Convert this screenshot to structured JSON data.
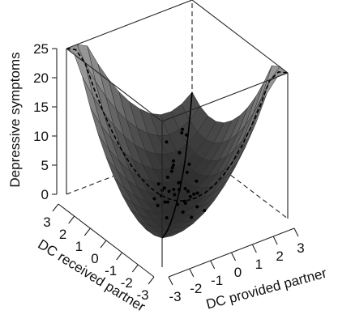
{
  "chart_data": {
    "type": "surface3d",
    "zlabel": "Depressive symptoms",
    "xlabel": "DC provided partner",
    "ylabel": "DC received partner",
    "x_ticks": [
      "-3",
      "-2",
      "-1",
      "0",
      "1",
      "2",
      "3"
    ],
    "y_ticks": [
      "-3",
      "-2",
      "-1",
      "0",
      "1",
      "2",
      "3"
    ],
    "z_ticks": [
      "0",
      "5",
      "10",
      "15",
      "20",
      "25"
    ],
    "xlim": [
      -3,
      3
    ],
    "ylim": [
      -3,
      3
    ],
    "zlim": [
      0,
      25
    ],
    "surface": {
      "description": "saddle-shaped quadratic response surface, gray shaded",
      "grid": [
        -3,
        -2.5,
        -2,
        -1.5,
        -1,
        -0.5,
        0,
        0.5,
        1,
        1.5,
        2,
        2.5,
        3
      ]
    },
    "lines": [
      {
        "name": "line of congruence",
        "style": "solid"
      },
      {
        "name": "line of incongruence",
        "style": "dashed"
      }
    ],
    "points": [
      [
        0.1,
        -0.2,
        13.5
      ],
      [
        0.3,
        0.1,
        12.0
      ],
      [
        -0.2,
        0.4,
        10.5
      ],
      [
        0.6,
        0.2,
        11.0
      ],
      [
        -0.4,
        -0.3,
        9.0
      ],
      [
        0.2,
        -0.5,
        8.0
      ],
      [
        0.5,
        0.5,
        7.5
      ],
      [
        -0.1,
        0.1,
        7.0
      ],
      [
        0.0,
        0.3,
        6.0
      ],
      [
        0.4,
        -0.1,
        5.5
      ],
      [
        -0.3,
        0.2,
        5.0
      ],
      [
        0.2,
        0.6,
        4.5
      ],
      [
        0.7,
        -0.3,
        4.0
      ],
      [
        -0.5,
        0.5,
        3.5
      ],
      [
        0.1,
        -0.7,
        3.0
      ],
      [
        0.3,
        0.3,
        3.0
      ],
      [
        -0.2,
        -0.1,
        2.5
      ],
      [
        0.6,
        0.6,
        2.0
      ],
      [
        -0.6,
        -0.2,
        2.0
      ],
      [
        0.4,
        0.4,
        1.5
      ],
      [
        0.0,
        0.8,
        1.5
      ],
      [
        0.8,
        0.0,
        1.0
      ],
      [
        -0.3,
        0.6,
        1.0
      ],
      [
        0.2,
        -0.2,
        1.0
      ],
      [
        0.5,
        -0.6,
        0.5
      ],
      [
        -0.7,
        0.3,
        0.5
      ],
      [
        0.3,
        0.9,
        0.3
      ],
      [
        0.9,
        0.5,
        0.3
      ],
      [
        -0.1,
        -0.5,
        0.2
      ],
      [
        0.1,
        0.1,
        0.0
      ],
      [
        0.6,
        1.0,
        0.0
      ],
      [
        1.0,
        0.8,
        0.0
      ],
      [
        -0.4,
        0.9,
        0.0
      ],
      [
        0.2,
        1.2,
        0.0
      ],
      [
        1.2,
        0.3,
        0.0
      ],
      [
        0.0,
        -0.9,
        0.0
      ],
      [
        -0.8,
        -0.4,
        0.0
      ],
      [
        0.7,
        -0.8,
        0.0
      ],
      [
        0.4,
        0.0,
        0.0
      ],
      [
        -0.2,
        0.5,
        0.0
      ]
    ]
  }
}
